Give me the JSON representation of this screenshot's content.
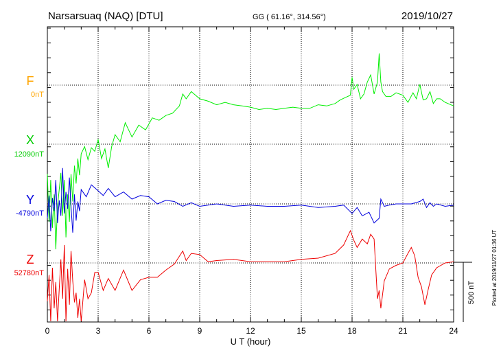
{
  "header": {
    "station": "Narsarsuaq (NAQ)  [DTU]",
    "coords": "GG ( 61.16°, 314.56°)",
    "date": "2019/10/27"
  },
  "side_note": "Plotted at 2019/11/27 01:36 UT",
  "scale_bar": {
    "label": "500 nT",
    "value_nT": 500
  },
  "colors": {
    "F": "#ffa500",
    "X": "#00ee00",
    "Y": "#0000dd",
    "Z": "#ee0000",
    "frame": "#000000"
  },
  "chart_data": {
    "type": "line",
    "title": "Narsarsuaq (NAQ)  [DTU]",
    "xlabel": "U T (hour)",
    "xlim": [
      0,
      24
    ],
    "xticks": [
      "0",
      "3",
      "6",
      "9",
      "12",
      "15",
      "18",
      "21",
      "24"
    ],
    "grid": true,
    "series": [
      {
        "name": "F",
        "baseline_label": "0nT",
        "baseline_nT": 0,
        "values": []
      },
      {
        "name": "X",
        "baseline_label": "12090nT",
        "baseline_nT": 12090,
        "x": [
          0,
          0.1,
          0.2,
          0.3,
          0.4,
          0.5,
          0.6,
          0.7,
          0.8,
          0.9,
          1.0,
          1.1,
          1.2,
          1.3,
          1.4,
          1.5,
          1.6,
          1.7,
          1.8,
          1.9,
          2.0,
          2.2,
          2.4,
          2.6,
          2.8,
          3.0,
          3.2,
          3.4,
          3.6,
          3.8,
          4.0,
          4.3,
          4.6,
          5.0,
          5.4,
          5.8,
          6.2,
          6.6,
          7.0,
          7.4,
          7.8,
          8.0,
          8.2,
          8.5,
          9.0,
          9.5,
          10,
          10.5,
          11,
          11.5,
          12,
          12.5,
          13,
          13.5,
          14,
          14.5,
          15,
          15.5,
          16,
          16.5,
          17,
          17.3,
          17.6,
          17.9,
          18.0,
          18.1,
          18.3,
          18.5,
          18.7,
          18.9,
          19.1,
          19.3,
          19.5,
          19.6,
          19.7,
          19.8,
          20.0,
          20.3,
          20.6,
          21.0,
          21.3,
          21.6,
          21.8,
          22.0,
          22.2,
          22.4,
          22.6,
          22.8,
          23.0,
          23.2,
          23.5,
          24
        ],
        "values": [
          -250,
          -650,
          -300,
          -700,
          -420,
          -880,
          -520,
          -380,
          -240,
          -600,
          -300,
          -780,
          -420,
          -650,
          -250,
          -480,
          -180,
          -330,
          -120,
          -260,
          -80,
          -20,
          -130,
          -30,
          -60,
          40,
          -120,
          -40,
          -200,
          -20,
          80,
          20,
          180,
          60,
          160,
          120,
          220,
          200,
          240,
          260,
          320,
          420,
          380,
          440,
          380,
          360,
          330,
          350,
          330,
          320,
          310,
          290,
          300,
          290,
          300,
          310,
          300,
          300,
          330,
          320,
          340,
          370,
          390,
          410,
          560,
          460,
          500,
          380,
          420,
          520,
          580,
          420,
          520,
          760,
          520,
          440,
          400,
          400,
          430,
          410,
          350,
          430,
          380,
          500,
          370,
          380,
          440,
          340,
          380,
          380,
          350,
          320
        ]
      },
      {
        "name": "Y",
        "baseline_label": "-4790nT",
        "baseline_nT": -4790,
        "x": [
          0,
          0.1,
          0.2,
          0.3,
          0.4,
          0.5,
          0.6,
          0.7,
          0.8,
          0.9,
          1.0,
          1.1,
          1.2,
          1.3,
          1.4,
          1.5,
          1.6,
          1.7,
          1.8,
          1.9,
          2.0,
          2.3,
          2.6,
          3.0,
          3.3,
          3.6,
          4.0,
          4.5,
          5.0,
          5.5,
          6.0,
          6.5,
          7.0,
          7.5,
          8.0,
          8.5,
          9.0,
          10,
          11,
          12,
          13,
          14,
          15,
          16,
          17,
          17.5,
          18.0,
          18.3,
          18.6,
          19.0,
          19.3,
          19.6,
          19.7,
          19.9,
          20.2,
          20.6,
          21.0,
          21.5,
          22.0,
          22.2,
          22.4,
          22.6,
          22.8,
          23.0,
          23.5,
          24
        ],
        "values": [
          -120,
          70,
          -230,
          50,
          -60,
          200,
          -160,
          30,
          -100,
          300,
          -80,
          100,
          -40,
          220,
          -20,
          -240,
          80,
          -140,
          20,
          -60,
          120,
          60,
          160,
          110,
          70,
          130,
          60,
          100,
          40,
          70,
          60,
          0,
          30,
          20,
          -20,
          10,
          -20,
          0,
          -20,
          -10,
          -20,
          -20,
          -10,
          -30,
          -20,
          -10,
          -80,
          -30,
          -100,
          -70,
          -160,
          -120,
          40,
          -20,
          -10,
          0,
          0,
          0,
          20,
          40,
          -30,
          10,
          -20,
          0,
          -20,
          -10
        ]
      },
      {
        "name": "Z",
        "baseline_label": "52780nT",
        "baseline_nT": 52780,
        "x": [
          0,
          0.1,
          0.2,
          0.3,
          0.4,
          0.5,
          0.6,
          0.7,
          0.8,
          0.9,
          1.0,
          1.1,
          1.2,
          1.3,
          1.4,
          1.5,
          1.6,
          1.7,
          1.8,
          1.9,
          2.0,
          2.2,
          2.4,
          2.6,
          2.8,
          3.0,
          3.3,
          3.6,
          4.0,
          4.5,
          5.0,
          5.5,
          6.0,
          6.5,
          7.0,
          7.5,
          8.0,
          8.2,
          8.5,
          9.0,
          9.5,
          10,
          11,
          12,
          13,
          14,
          15,
          16,
          17,
          17.5,
          17.9,
          18.1,
          18.3,
          18.6,
          18.9,
          19.1,
          19.3,
          19.5,
          19.6,
          19.7,
          19.9,
          20.2,
          20.6,
          21.0,
          21.3,
          21.5,
          21.7,
          21.9,
          22.1,
          22.3,
          22.5,
          22.7,
          22.9,
          23.0,
          23.5,
          24
        ],
        "values": [
          -320,
          -100,
          -560,
          -40,
          -380,
          -160,
          -680,
          -220,
          30,
          -300,
          150,
          -500,
          -50,
          -350,
          100,
          -150,
          -330,
          -250,
          -460,
          -300,
          -720,
          -140,
          -300,
          -250,
          -80,
          -80,
          -230,
          -130,
          -230,
          -60,
          -230,
          -140,
          -120,
          -120,
          -60,
          -10,
          100,
          20,
          80,
          70,
          10,
          20,
          30,
          10,
          10,
          10,
          30,
          40,
          80,
          150,
          270,
          190,
          130,
          200,
          160,
          240,
          200,
          -300,
          -230,
          -380,
          -150,
          -50,
          -20,
          0,
          80,
          130,
          60,
          -120,
          -200,
          -350,
          -220,
          -100,
          -60,
          -40,
          0,
          10
        ]
      }
    ]
  }
}
